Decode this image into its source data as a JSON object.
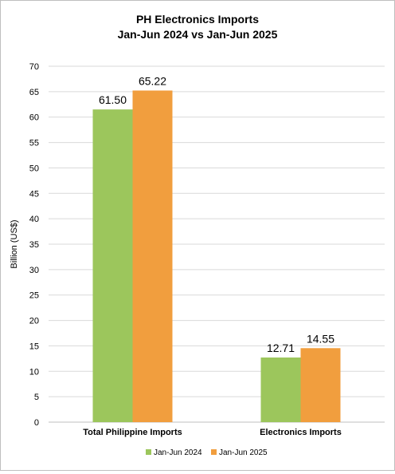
{
  "chart_data": {
    "type": "bar",
    "title_line1": "PH Electronics Imports",
    "title_line2": "Jan-Jun 2024 vs Jan-Jun 2025",
    "xlabel": "",
    "ylabel": "Billion (US$)",
    "ylim": [
      0,
      70
    ],
    "yticks": [
      "0",
      "5",
      "10",
      "15",
      "20",
      "25",
      "30",
      "35",
      "40",
      "45",
      "50",
      "55",
      "60",
      "65",
      "70"
    ],
    "grid": true,
    "legend_position": "bottom",
    "categories": [
      "Total Philippine Imports",
      "Electronics Imports"
    ],
    "series": [
      {
        "name": "Jan-Jun 2024",
        "color": "#9cc65c",
        "values": [
          61.5,
          12.71
        ],
        "labels": [
          "61.50",
          "12.71"
        ]
      },
      {
        "name": "Jan-Jun 2025",
        "color": "#f19e3e",
        "values": [
          65.22,
          14.55
        ],
        "labels": [
          "65.22",
          "14.55"
        ]
      }
    ]
  }
}
